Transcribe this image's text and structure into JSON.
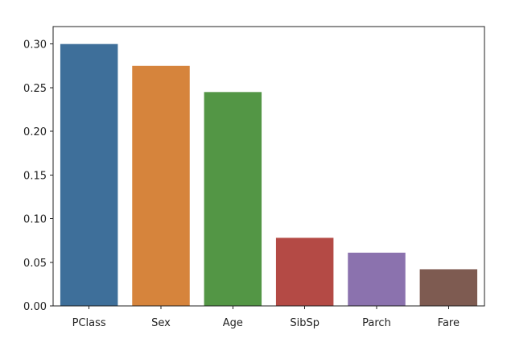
{
  "chart_data": {
    "type": "bar",
    "title": "",
    "xlabel": "",
    "ylabel": "",
    "categories": [
      "PClass",
      "Sex",
      "Age",
      "SibSp",
      "Parch",
      "Fare"
    ],
    "values": [
      0.3,
      0.275,
      0.245,
      0.078,
      0.061,
      0.042
    ],
    "colors": [
      "#3e6f9a",
      "#d6843c",
      "#539645",
      "#b44a45",
      "#8b72ae",
      "#7e5b51"
    ],
    "ylim": [
      0,
      0.32
    ],
    "yticks": [
      0.0,
      0.05,
      0.1,
      0.15,
      0.2,
      0.25,
      0.3
    ],
    "ytick_labels": [
      "0.00",
      "0.05",
      "0.10",
      "0.15",
      "0.20",
      "0.25",
      "0.30"
    ],
    "grid": false,
    "legend": "none"
  }
}
